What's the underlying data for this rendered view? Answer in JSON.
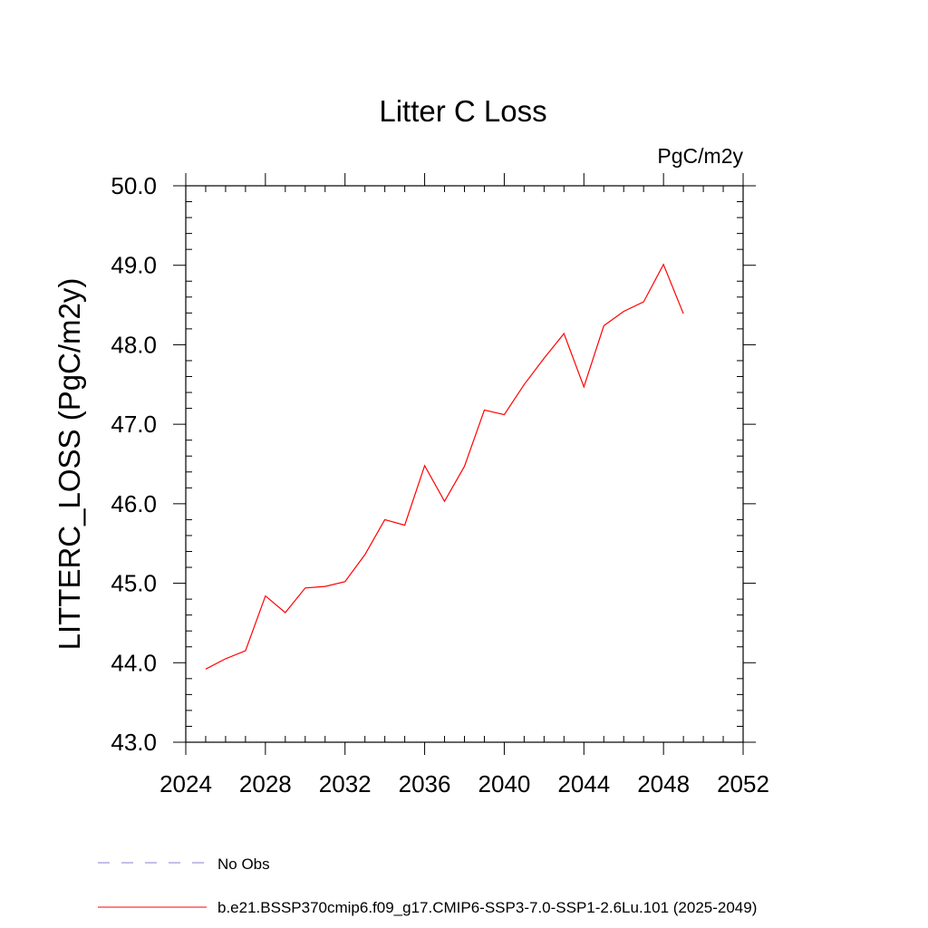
{
  "chart_data": {
    "type": "line",
    "title": "Litter C Loss",
    "units_label": "PgC/m2y",
    "xlabel": "",
    "ylabel": "LITTERC_LOSS  (PgC/m2y)",
    "xlim": [
      2024,
      2052
    ],
    "ylim": [
      43.0,
      50.0
    ],
    "x_ticks": [
      2024,
      2028,
      2032,
      2036,
      2040,
      2044,
      2048,
      2052
    ],
    "y_ticks": [
      "43.0",
      "44.0",
      "45.0",
      "46.0",
      "47.0",
      "48.0",
      "49.0",
      "50.0"
    ],
    "series": [
      {
        "name": "b.e21.BSSP370cmip6.f09_g17.CMIP6-SSP3-7.0-SSP1-2.6Lu.101 (2025-2049)",
        "color": "#ff0000",
        "x": [
          2025,
          2026,
          2027,
          2028,
          2029,
          2030,
          2031,
          2032,
          2033,
          2034,
          2035,
          2036,
          2037,
          2038,
          2039,
          2040,
          2041,
          2042,
          2043,
          2044,
          2045,
          2046,
          2047,
          2048,
          2049
        ],
        "values": [
          43.92,
          44.05,
          44.15,
          44.84,
          44.63,
          44.94,
          44.96,
          45.02,
          45.36,
          45.8,
          45.73,
          46.48,
          46.03,
          46.47,
          47.18,
          47.12,
          47.5,
          47.83,
          48.14,
          47.47,
          48.24,
          48.42,
          48.54,
          49.01,
          48.39
        ]
      }
    ],
    "legend": [
      {
        "label": "No Obs",
        "style": "dashed",
        "color": "#8a7fd0"
      },
      {
        "label": "b.e21.BSSP370cmip6.f09_g17.CMIP6-SSP3-7.0-SSP1-2.6Lu.101 (2025-2049)",
        "style": "solid",
        "color": "#ff0000"
      }
    ]
  }
}
